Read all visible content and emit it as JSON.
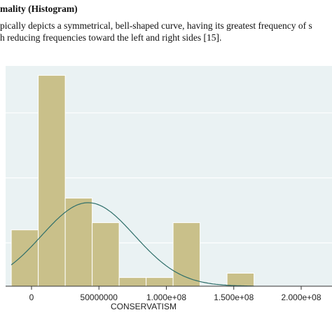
{
  "document": {
    "heading": "mality (Histogram)",
    "para_line1": "pically depicts a symmetrical, bell-shaped curve, having its greatest frequency of s",
    "para_line2": "h reducing frequencies toward the left and right sides [15]."
  },
  "colors": {
    "plot_bg": "#eaf2f3",
    "bar_fill": "#c9c08a",
    "bar_stroke": "#ffffff",
    "curve": "#2f6f6a",
    "grid": "#ffffff",
    "outer_bg": "#ffffff",
    "axis": "#333333"
  },
  "chart_data": {
    "type": "bar",
    "title": "",
    "xlabel": "CONSERVATISM",
    "ylabel": "",
    "xlim": [
      -4000000,
      200000000
    ],
    "ylim": [
      0,
      3.05e-08
    ],
    "bin_width": 20000000,
    "bins": [
      {
        "start": -15000000,
        "end": 5000000,
        "value": 7.8e-09
      },
      {
        "start": 5000000,
        "end": 25000000,
        "value": 2.92e-08
      },
      {
        "start": 25000000,
        "end": 45000000,
        "value": 1.22e-08
      },
      {
        "start": 45000000,
        "end": 65000000,
        "value": 8.8e-09
      },
      {
        "start": 65000000,
        "end": 85000000,
        "value": 1.2e-09
      },
      {
        "start": 85000000,
        "end": 105000000,
        "value": 1.2e-09
      },
      {
        "start": 105000000,
        "end": 125000000,
        "value": 8.8e-09
      },
      {
        "start": 125000000,
        "end": 145000000,
        "value": 0.0
      },
      {
        "start": 145000000,
        "end": 165000000,
        "value": 1.8e-09
      }
    ],
    "normal_curve": {
      "mean": 42000000,
      "sd": 34500000
    },
    "x_ticks": [
      {
        "value": 0,
        "label": "0"
      },
      {
        "value": 50000000,
        "label": "50000000"
      },
      {
        "value": 100000000,
        "label": "1.000e+08"
      },
      {
        "value": 150000000,
        "label": "1.500e+08"
      },
      {
        "value": 200000000,
        "label": "2.000e+08"
      }
    ],
    "y_gridlines": [
      6e-09,
      1.5e-08,
      2.4e-08
    ],
    "grid": true
  }
}
